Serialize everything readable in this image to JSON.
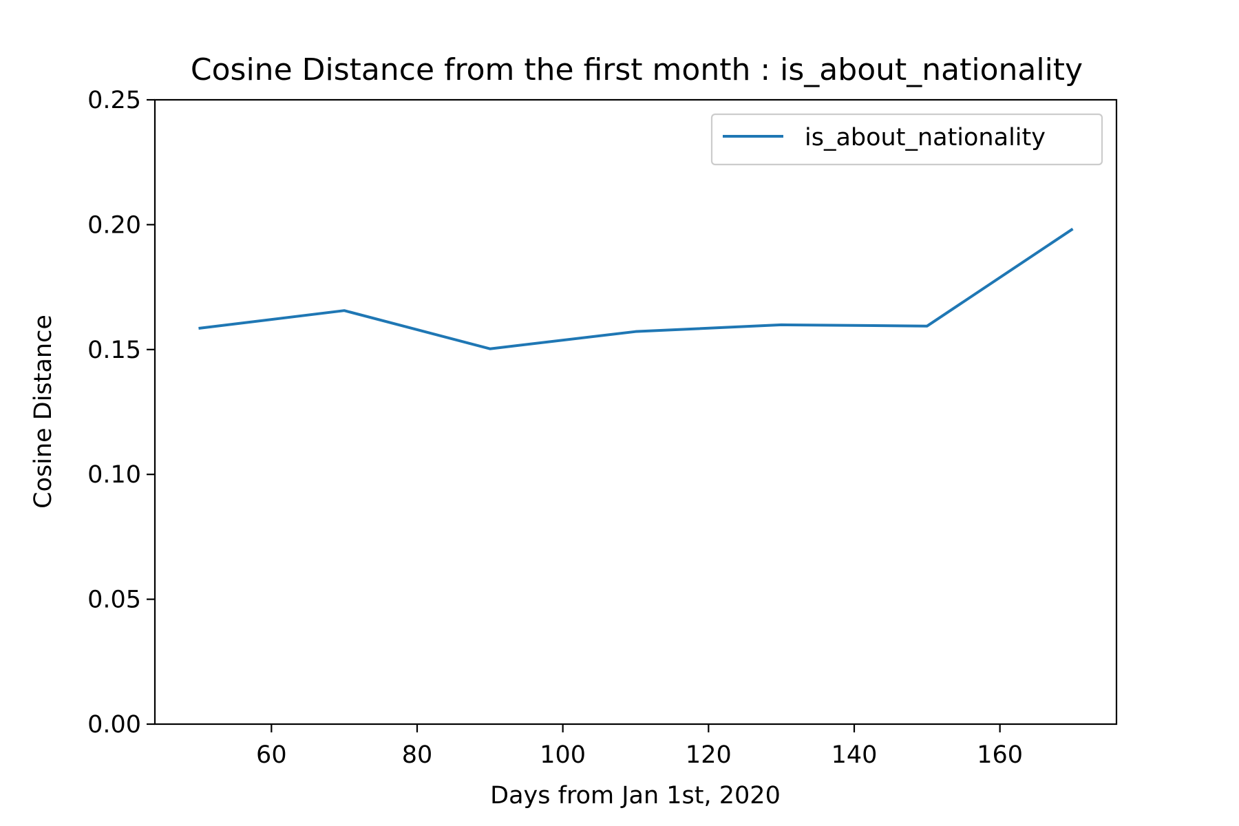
{
  "chart_data": {
    "type": "line",
    "title": "Cosine Distance from the first month : is_about_nationality",
    "xlabel": "Days from Jan 1st, 2020",
    "ylabel": "Cosine Distance",
    "xlim": [
      44,
      176
    ],
    "ylim": [
      0,
      0.25
    ],
    "x_ticks": [
      60,
      80,
      100,
      120,
      140,
      160
    ],
    "x_tick_labels": [
      "60",
      "80",
      "100",
      "120",
      "140",
      "160"
    ],
    "y_ticks": [
      0,
      0.05,
      0.1,
      0.15,
      0.2,
      0.25
    ],
    "y_tick_labels": [
      "0.00",
      "0.05",
      "0.10",
      "0.15",
      "0.20",
      "0.25"
    ],
    "grid": false,
    "legend_position": "top-right",
    "series": [
      {
        "name": "is_about_nationality",
        "color": "#1f77b4",
        "x": [
          50,
          70,
          90,
          110,
          130,
          150,
          170
        ],
        "y": [
          0.1585,
          0.1656,
          0.1503,
          0.1572,
          0.1599,
          0.1594,
          0.1983
        ]
      }
    ]
  }
}
